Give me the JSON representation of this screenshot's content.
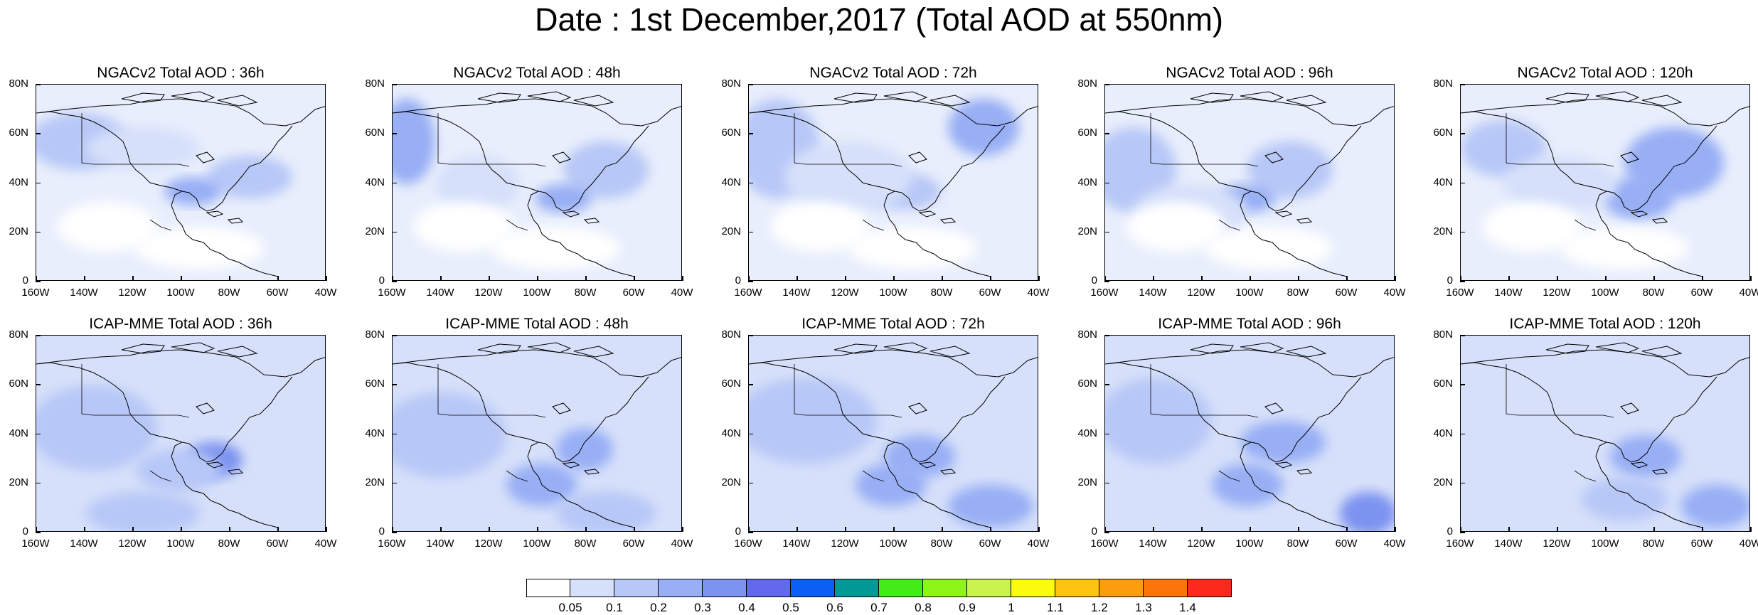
{
  "title": "Date : 1st December,2017 (Total AOD at 550nm)",
  "panels": [
    {
      "title": "NGACv2 Total AOD : 36h"
    },
    {
      "title": "NGACv2 Total AOD : 48h"
    },
    {
      "title": "NGACv2 Total AOD : 72h"
    },
    {
      "title": "NGACv2 Total AOD : 96h"
    },
    {
      "title": "NGACv2 Total AOD : 120h"
    },
    {
      "title": "ICAP-MME Total AOD : 36h"
    },
    {
      "title": "ICAP-MME Total AOD : 48h"
    },
    {
      "title": "ICAP-MME Total AOD : 72h"
    },
    {
      "title": "ICAP-MME Total AOD : 96h"
    },
    {
      "title": "ICAP-MME Total AOD : 120h"
    }
  ],
  "axes": {
    "lat_labels": [
      "80N",
      "60N",
      "40N",
      "20N",
      "0"
    ],
    "lon_labels": [
      "160W",
      "140W",
      "120W",
      "100W",
      "80W",
      "60W",
      "40W"
    ]
  },
  "colorbar": {
    "labels": [
      "0.05",
      "0.1",
      "0.2",
      "0.3",
      "0.4",
      "0.5",
      "0.6",
      "0.7",
      "0.8",
      "0.9",
      "1",
      "1.1",
      "1.2",
      "1.3",
      "1.4"
    ],
    "colors": [
      "#ffffff",
      "#d6e0fa",
      "#b7c7f7",
      "#98aff5",
      "#7d93f0",
      "#6269ec",
      "#0b5ff4",
      "#009b96",
      "#42ec16",
      "#8ff514",
      "#c9f44c",
      "#fbfb0e",
      "#fcc310",
      "#fd9d0c",
      "#fc750b",
      "#fc2a1c"
    ]
  }
}
